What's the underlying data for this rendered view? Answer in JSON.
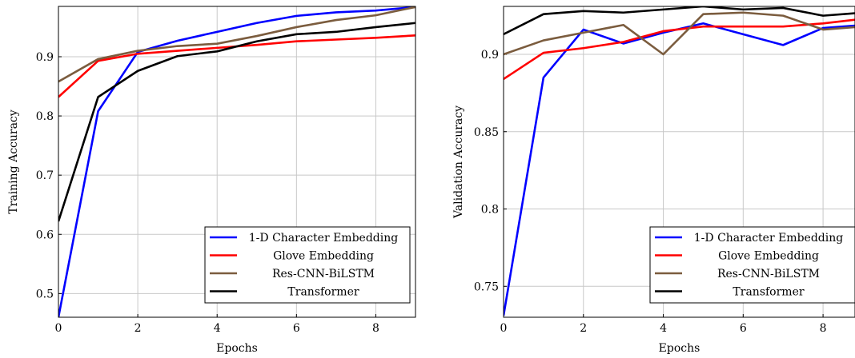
{
  "chart_data": [
    {
      "type": "line",
      "title": "",
      "xlabel": "Epochs",
      "ylabel": "Training Accuracy",
      "xlim": [
        0,
        9
      ],
      "ylim": [
        0.46,
        0.985
      ],
      "xticks": [
        0,
        2,
        4,
        6,
        8
      ],
      "xtick_labels": [
        "0",
        "2",
        "4",
        "6",
        "8"
      ],
      "yticks": [
        0.5,
        0.6,
        0.7,
        0.8,
        0.9
      ],
      "ytick_labels": [
        "0.5",
        "0.6",
        "0.7",
        "0.8",
        "0.9"
      ],
      "grid": true,
      "legend_position": "bottom-right",
      "x": [
        0,
        1,
        2,
        3,
        4,
        5,
        6,
        7,
        8,
        9
      ],
      "series": [
        {
          "name": "1-D Character Embedding",
          "color": "#0000ff",
          "values": [
            0.46,
            0.808,
            0.908,
            0.927,
            0.942,
            0.957,
            0.969,
            0.975,
            0.978,
            0.984
          ]
        },
        {
          "name": "Glove Embedding",
          "color": "#ff0000",
          "values": [
            0.832,
            0.893,
            0.905,
            0.91,
            0.915,
            0.92,
            0.926,
            0.929,
            0.932,
            0.936
          ]
        },
        {
          "name": "Res-CNN-BiLSTM",
          "color": "#7b5c3e",
          "values": [
            0.858,
            0.896,
            0.91,
            0.918,
            0.922,
            0.935,
            0.95,
            0.962,
            0.97,
            0.984
          ]
        },
        {
          "name": "Transformer",
          "color": "#000000",
          "values": [
            0.622,
            0.832,
            0.876,
            0.901,
            0.909,
            0.926,
            0.938,
            0.942,
            0.95,
            0.957
          ]
        }
      ]
    },
    {
      "type": "line",
      "title": "",
      "xlabel": "Epochs",
      "ylabel": "Validation Accuracy",
      "xlim": [
        0,
        8.8
      ],
      "ylim": [
        0.73,
        0.931
      ],
      "xticks": [
        0,
        2,
        4,
        6,
        8
      ],
      "xtick_labels": [
        "0",
        "2",
        "4",
        "6",
        "8"
      ],
      "yticks": [
        0.75,
        0.8,
        0.85,
        0.9
      ],
      "ytick_labels": [
        "0.75",
        "0.8",
        "0.85",
        "0.9"
      ],
      "grid": true,
      "legend_position": "bottom-right",
      "x": [
        0,
        1,
        2,
        3,
        4,
        5,
        6,
        7,
        8,
        9
      ],
      "series": [
        {
          "name": "1-D Character Embedding",
          "color": "#0000ff",
          "values": [
            0.731,
            0.885,
            0.916,
            0.907,
            0.914,
            0.92,
            0.913,
            0.906,
            0.917,
            0.919
          ]
        },
        {
          "name": "Glove Embedding",
          "color": "#ff0000",
          "values": [
            0.884,
            0.901,
            0.904,
            0.908,
            0.915,
            0.918,
            0.918,
            0.918,
            0.92,
            0.923
          ]
        },
        {
          "name": "Res-CNN-BiLSTM",
          "color": "#7b5c3e",
          "values": [
            0.9,
            0.909,
            0.914,
            0.919,
            0.9,
            0.926,
            0.927,
            0.925,
            0.916,
            0.918
          ]
        },
        {
          "name": "Transformer",
          "color": "#000000",
          "values": [
            0.913,
            0.926,
            0.928,
            0.927,
            0.929,
            0.931,
            0.929,
            0.93,
            0.925,
            0.927
          ]
        }
      ]
    }
  ]
}
